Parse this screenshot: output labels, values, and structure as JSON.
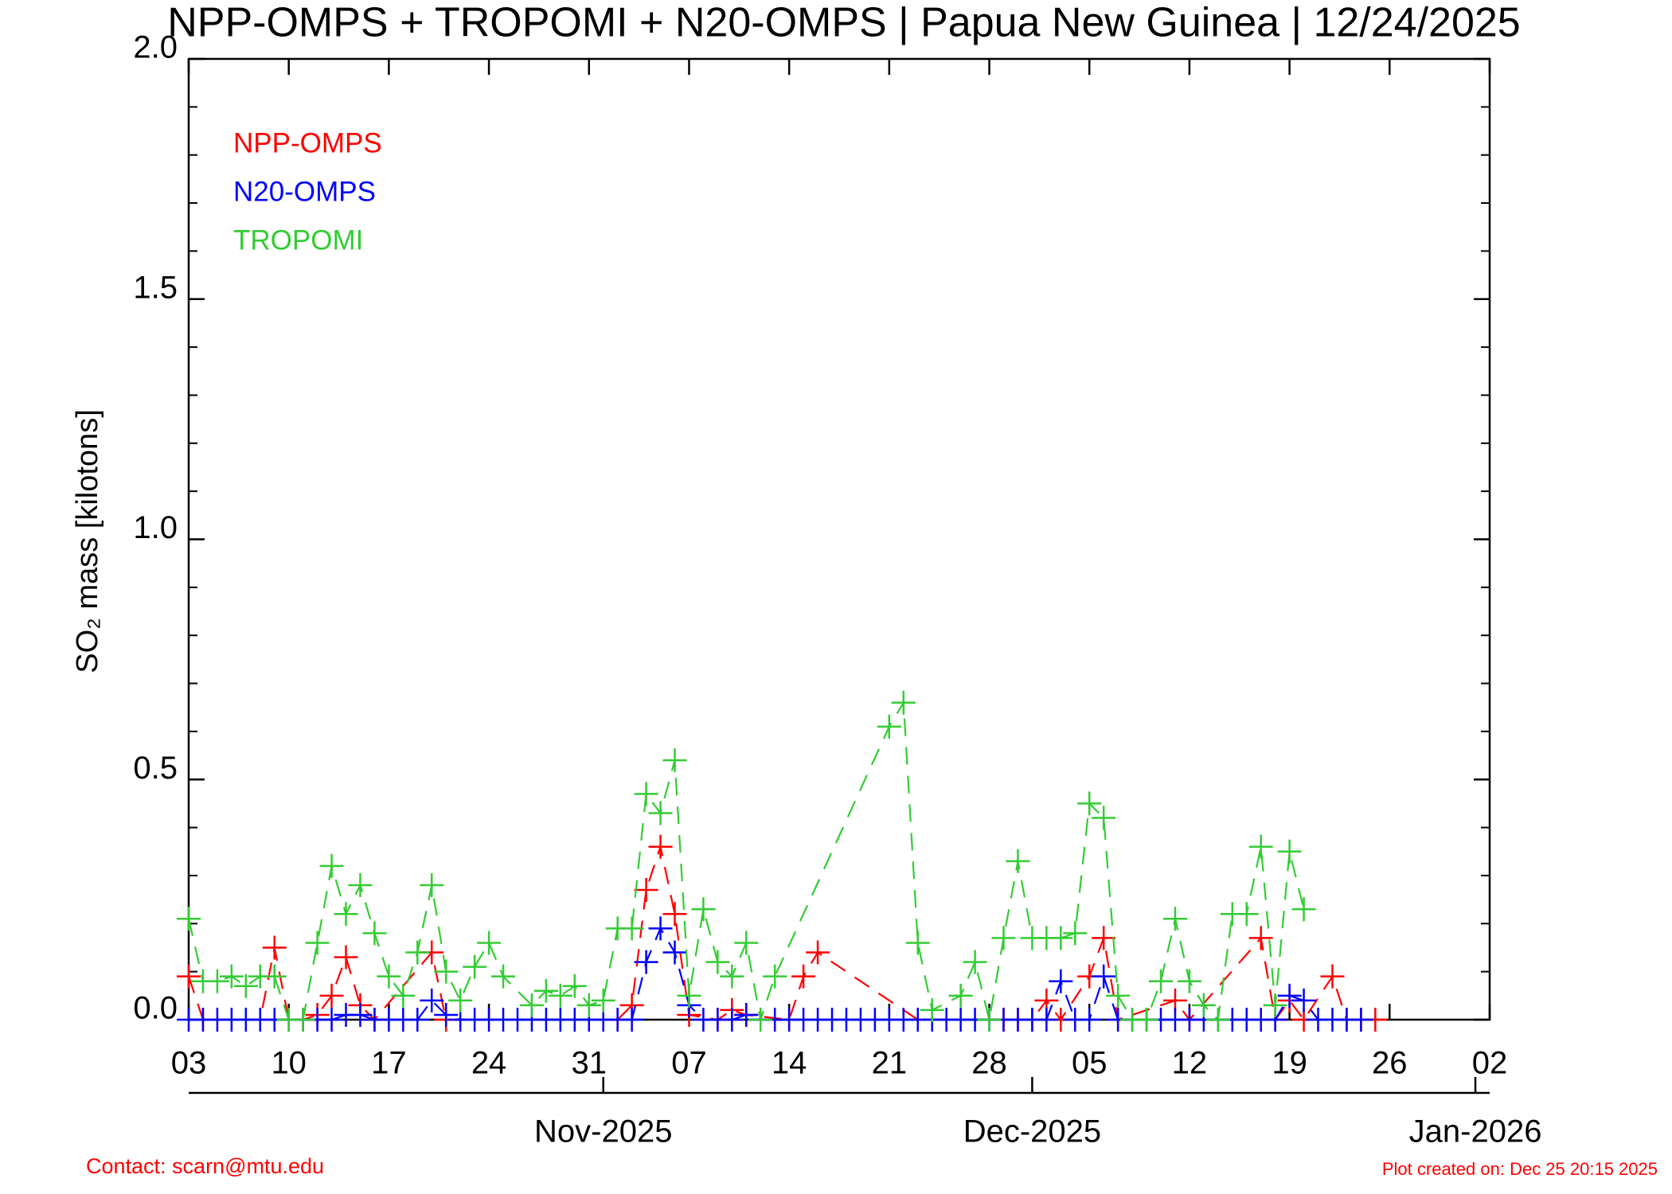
{
  "chart_data": {
    "type": "line",
    "title": "NPP-OMPS + TROPOMI + N20-OMPS | Papua New Guinea | 12/24/2025",
    "y_label": "SO₂ mass [kilotons]",
    "xlim": [
      "2025-10-03",
      "2026-01-02"
    ],
    "xticks": [
      {
        "value": "2025-10-03",
        "label": "03"
      },
      {
        "value": "2025-10-10",
        "label": "10"
      },
      {
        "value": "2025-10-17",
        "label": "17"
      },
      {
        "value": "2025-10-24",
        "label": "24"
      },
      {
        "value": "2025-10-31",
        "label": "31"
      },
      {
        "value": "2025-11-07",
        "label": "07"
      },
      {
        "value": "2025-11-14",
        "label": "14"
      },
      {
        "value": "2025-11-21",
        "label": "21"
      },
      {
        "value": "2025-11-28",
        "label": "28"
      },
      {
        "value": "2025-12-05",
        "label": "05"
      },
      {
        "value": "2025-12-12",
        "label": "12"
      },
      {
        "value": "2025-12-19",
        "label": "19"
      },
      {
        "value": "2025-12-26",
        "label": "26"
      },
      {
        "value": "2026-01-02",
        "label": "02"
      }
    ],
    "month_ticks": [
      {
        "value": "2025-11-01",
        "label": "Nov-2025"
      },
      {
        "value": "2025-12-01",
        "label": "Dec-2025"
      },
      {
        "value": "2026-01-01",
        "label": "Jan-2026"
      }
    ],
    "ylim": [
      0,
      2
    ],
    "yticks": [
      {
        "value": 0,
        "label": "0.0"
      },
      {
        "value": 0.5,
        "label": "0.5"
      },
      {
        "value": 1,
        "label": "1.0"
      },
      {
        "value": 1.5,
        "label": "1.5"
      },
      {
        "value": 2,
        "label": "2.0"
      }
    ],
    "yminor_ticks": [
      0.1,
      0.2,
      0.3,
      0.4,
      0.6,
      0.7,
      0.8,
      0.9,
      1.1,
      1.2,
      1.3,
      1.4,
      1.6,
      1.7,
      1.8,
      1.9
    ],
    "legend": "upper left",
    "series": [
      {
        "name": "NPP-OMPS",
        "color": "#ff0000",
        "x": [
          "2025-10-03",
          "2025-10-04",
          "2025-10-08",
          "2025-10-09",
          "2025-10-10",
          "2025-10-11",
          "2025-10-12",
          "2025-10-13",
          "2025-10-14",
          "2025-10-15",
          "2025-10-16",
          "2025-10-20",
          "2025-10-21",
          "2025-11-02",
          "2025-11-03",
          "2025-11-04",
          "2025-11-05",
          "2025-11-06",
          "2025-11-07",
          "2025-11-09",
          "2025-11-10",
          "2025-11-11",
          "2025-11-14",
          "2025-11-15",
          "2025-11-16",
          "2025-11-23",
          "2025-11-29",
          "2025-11-30",
          "2025-12-01",
          "2025-12-02",
          "2025-12-03",
          "2025-12-05",
          "2025-12-06",
          "2025-12-07",
          "2025-12-11",
          "2025-12-12",
          "2025-12-17",
          "2025-12-18",
          "2025-12-19",
          "2025-12-20",
          "2025-12-22",
          "2025-12-23",
          "2025-12-24",
          "2025-12-25"
        ],
        "values": [
          0.09,
          0,
          0,
          0.15,
          0,
          0,
          0.01,
          0.05,
          0.13,
          0.03,
          0,
          0.14,
          0,
          0,
          0.03,
          0.27,
          0.36,
          0.22,
          0.01,
          0,
          0.02,
          0.01,
          0,
          0.09,
          0.14,
          0,
          0,
          0,
          0,
          0.04,
          0,
          0.09,
          0.17,
          0,
          0.04,
          0,
          0.17,
          0,
          0.04,
          0,
          0.09,
          0,
          0,
          0
        ]
      },
      {
        "name": "N20-OMPS",
        "color": "#0000ff",
        "x": [
          "2025-10-03",
          "2025-10-04",
          "2025-10-05",
          "2025-10-06",
          "2025-10-07",
          "2025-10-08",
          "2025-10-09",
          "2025-10-10",
          "2025-10-11",
          "2025-10-12",
          "2025-10-13",
          "2025-10-14",
          "2025-10-15",
          "2025-10-16",
          "2025-10-17",
          "2025-10-18",
          "2025-10-19",
          "2025-10-20",
          "2025-10-21",
          "2025-10-22",
          "2025-10-23",
          "2025-10-24",
          "2025-10-25",
          "2025-10-26",
          "2025-10-27",
          "2025-10-28",
          "2025-10-29",
          "2025-10-30",
          "2025-10-31",
          "2025-11-01",
          "2025-11-02",
          "2025-11-03",
          "2025-11-04",
          "2025-11-05",
          "2025-11-06",
          "2025-11-07",
          "2025-11-08",
          "2025-11-09",
          "2025-11-10",
          "2025-11-11",
          "2025-11-12",
          "2025-11-13",
          "2025-11-14",
          "2025-11-15",
          "2025-11-16",
          "2025-11-17",
          "2025-11-18",
          "2025-11-19",
          "2025-11-20",
          "2025-11-21",
          "2025-11-22",
          "2025-11-23",
          "2025-11-24",
          "2025-11-25",
          "2025-11-26",
          "2025-11-27",
          "2025-11-28",
          "2025-11-29",
          "2025-11-30",
          "2025-12-01",
          "2025-12-02",
          "2025-12-03",
          "2025-12-04",
          "2025-12-05",
          "2025-12-06",
          "2025-12-07",
          "2025-12-08",
          "2025-12-09",
          "2025-12-10",
          "2025-12-11",
          "2025-12-12",
          "2025-12-13",
          "2025-12-14",
          "2025-12-15",
          "2025-12-16",
          "2025-12-17",
          "2025-12-18",
          "2025-12-19",
          "2025-12-20",
          "2025-12-21",
          "2025-12-22",
          "2025-12-23",
          "2025-12-24"
        ],
        "values": [
          0,
          0,
          0,
          0,
          0,
          0,
          0,
          0,
          0,
          0,
          0,
          0.01,
          0.01,
          0,
          0,
          0,
          0,
          0.04,
          0.01,
          0,
          0,
          0,
          0,
          0,
          0,
          0,
          0,
          0,
          0,
          0,
          0,
          0,
          0.12,
          0.19,
          0.14,
          0.03,
          0,
          0,
          0,
          0.01,
          0,
          0,
          0,
          0,
          0,
          0,
          0,
          0,
          0,
          0,
          0,
          0,
          0,
          0,
          0,
          0,
          0,
          0,
          0,
          0,
          0,
          0.08,
          0,
          0,
          0.09,
          0,
          0,
          0,
          0,
          0,
          0,
          0,
          0,
          0,
          0,
          0,
          0,
          0.05,
          0.04,
          0,
          0,
          0,
          0
        ]
      },
      {
        "name": "TROPOMI",
        "color": "#33cc33",
        "x": [
          "2025-10-03",
          "2025-10-04",
          "2025-10-05",
          "2025-10-06",
          "2025-10-07",
          "2025-10-08",
          "2025-10-09",
          "2025-10-10",
          "2025-10-11",
          "2025-10-12",
          "2025-10-13",
          "2025-10-14",
          "2025-10-15",
          "2025-10-16",
          "2025-10-17",
          "2025-10-18",
          "2025-10-19",
          "2025-10-20",
          "2025-10-21",
          "2025-10-22",
          "2025-10-23",
          "2025-10-24",
          "2025-10-25",
          "2025-10-27",
          "2025-10-28",
          "2025-10-29",
          "2025-10-30",
          "2025-10-31",
          "2025-11-01",
          "2025-11-02",
          "2025-11-03",
          "2025-11-04",
          "2025-11-05",
          "2025-11-06",
          "2025-11-07",
          "2025-11-08",
          "2025-11-09",
          "2025-11-10",
          "2025-11-11",
          "2025-11-12",
          "2025-11-13",
          "2025-11-21",
          "2025-11-22",
          "2025-11-23",
          "2025-11-24",
          "2025-11-26",
          "2025-11-27",
          "2025-11-28",
          "2025-11-29",
          "2025-11-30",
          "2025-12-01",
          "2025-12-02",
          "2025-12-03",
          "2025-12-04",
          "2025-12-05",
          "2025-12-06",
          "2025-12-07",
          "2025-12-08",
          "2025-12-09",
          "2025-12-10",
          "2025-12-11",
          "2025-12-12",
          "2025-12-13",
          "2025-12-14",
          "2025-12-15",
          "2025-12-16",
          "2025-12-17",
          "2025-12-18",
          "2025-12-19",
          "2025-12-20"
        ],
        "values": [
          0.21,
          0.08,
          0.08,
          0.09,
          0.07,
          0.09,
          0.09,
          0,
          0,
          0.16,
          0.32,
          0.22,
          0.28,
          0.18,
          0.09,
          0.05,
          0.14,
          0.28,
          0.1,
          0.04,
          0.11,
          0.16,
          0.09,
          0.03,
          0.06,
          0.05,
          0.07,
          0.03,
          0.04,
          0.19,
          0.19,
          0.47,
          0.43,
          0.54,
          0.05,
          0.23,
          0.12,
          0.09,
          0.16,
          0,
          0.09,
          0.61,
          0.66,
          0.16,
          0.02,
          0.05,
          0.12,
          0,
          0.17,
          0.33,
          0.17,
          0.17,
          0.17,
          0.18,
          0.45,
          0.42,
          0.05,
          0,
          0,
          0.08,
          0.21,
          0.08,
          0.03,
          0,
          0.22,
          0.22,
          0.36,
          0.03,
          0.35,
          0.23
        ]
      }
    ],
    "contact": "Contact: scarn@mtu.edu",
    "created": "Plot created on: Dec 25 20:15 2025"
  }
}
